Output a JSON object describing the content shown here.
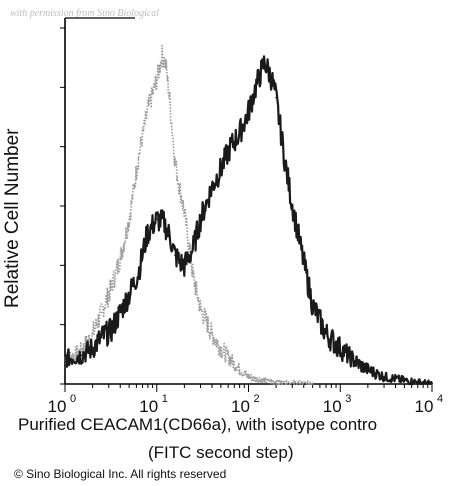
{
  "watermark": "with permission from Sino Biological",
  "copyright": "© Sino Biological Inc. All rights reserved",
  "chart_data": {
    "type": "line",
    "title": "",
    "xlabel_line1": "Purified CEACAM1(CD66a), with isotype contro",
    "xlabel_line2": "(FITC second step)",
    "ylabel": "Relative Cell Number",
    "x_scale": "log",
    "xlim": [
      1,
      10000
    ],
    "ylim": [
      0,
      100
    ],
    "x_ticks": [
      {
        "value": 1,
        "base": "10",
        "exp": "0"
      },
      {
        "value": 10,
        "base": "10",
        "exp": "1"
      },
      {
        "value": 100,
        "base": "10",
        "exp": "2"
      },
      {
        "value": 1000,
        "base": "10",
        "exp": "3"
      },
      {
        "value": 10000,
        "base": "10",
        "exp": "4"
      }
    ],
    "grid": false,
    "legend": "none",
    "series": [
      {
        "color": "#9a9a9a",
        "style": "dotted",
        "x": [
          1,
          1.3,
          1.6,
          2,
          2.5,
          3.2,
          4,
          5,
          6.3,
          7.9,
          10,
          11.5,
          12.6,
          14,
          15.8,
          18,
          20,
          25,
          30,
          40,
          50,
          63,
          80,
          100,
          150,
          200,
          300,
          500
        ],
        "y": [
          7,
          8,
          10,
          14,
          20,
          27,
          35,
          46,
          63,
          76,
          85,
          92,
          89,
          78,
          62,
          54,
          48,
          30,
          21,
          14,
          10,
          7,
          4,
          2,
          1,
          0.5,
          0.3,
          0
        ]
      },
      {
        "color": "#1a1a1a",
        "style": "dense",
        "x": [
          1,
          1.5,
          2,
          2.5,
          3.2,
          4,
          5,
          6.3,
          7.9,
          10,
          12,
          14,
          15.8,
          18,
          20,
          25,
          30,
          40,
          50,
          63,
          80,
          100,
          120,
          150,
          180,
          200,
          250,
          300,
          400,
          500,
          700,
          1000,
          1500,
          2000,
          3000,
          5000,
          10000
        ],
        "y": [
          7,
          8,
          10,
          13,
          15,
          20,
          25,
          31,
          42,
          46,
          45,
          41,
          36,
          34,
          33,
          38,
          46,
          55,
          60,
          66,
          70,
          76,
          83,
          90,
          85,
          80,
          62,
          50,
          34,
          22,
          14,
          10,
          6,
          4,
          2,
          1,
          0
        ]
      }
    ]
  }
}
